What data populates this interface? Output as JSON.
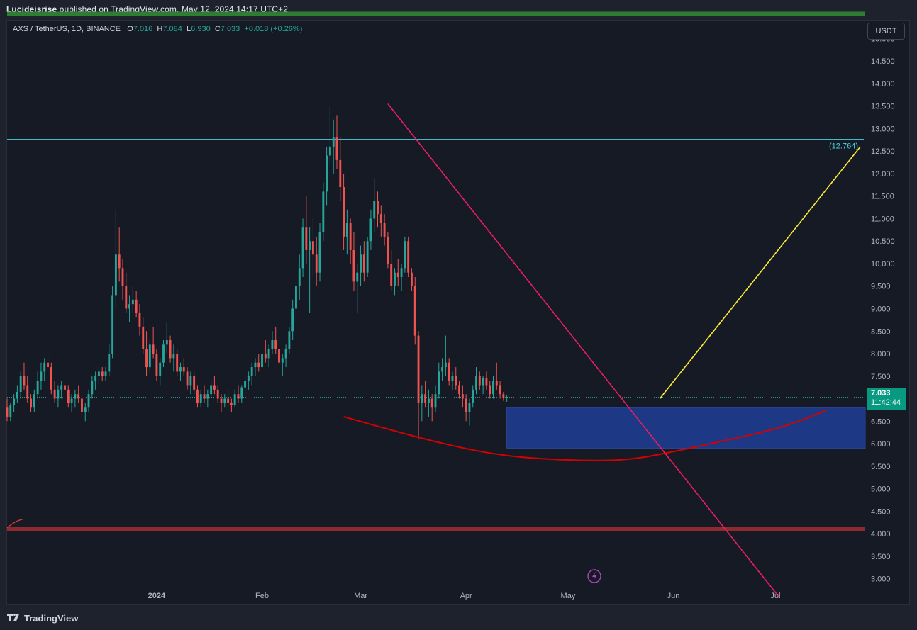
{
  "header": {
    "author": "Lucideisrise",
    "published": "published on TradingView.com, May 12, 2024 14:17 UTC+2"
  },
  "symbol": {
    "pair": "AXS / TetherUS, 1D, BINANCE",
    "o_label": "O",
    "o": "7.016",
    "h_label": "H",
    "h": "7.084",
    "l_label": "L",
    "l": "6.930",
    "c_label": "C",
    "c": "7.033",
    "change": "+0.018 (+0.26%)"
  },
  "currency_button": "USDT",
  "last_price": {
    "price": "7.033",
    "countdown": "11:42:44"
  },
  "footer": {
    "brand": "TradingView"
  },
  "colors": {
    "up": "#26a69a",
    "down": "#ef5350",
    "trendline": "#e91e63",
    "projection": "#ffeb3b",
    "zone": "#1e3a8a",
    "support": "#8e2a30",
    "resistance_top": "#2e7d32",
    "curve": "#d50000",
    "hline": "#4dd0e1"
  },
  "chart_data": {
    "type": "candlestick",
    "yaxis": {
      "ticks": [
        "15.000",
        "14.500",
        "14.000",
        "13.500",
        "13.000",
        "12.500",
        "12.000",
        "11.500",
        "11.000",
        "10.500",
        "10.000",
        "9.500",
        "9.000",
        "8.500",
        "8.000",
        "7.500",
        "7.000",
        "6.500",
        "6.000",
        "5.500",
        "5.000",
        "4.500",
        "4.000",
        "3.500",
        "3.000"
      ],
      "range": [
        2.6,
        15.4
      ]
    },
    "xaxis": {
      "ticks": [
        {
          "label": "2024",
          "date": "2024-01-01"
        },
        {
          "label": "Feb",
          "date": "2024-02-01"
        },
        {
          "label": "Mar",
          "date": "2024-03-01"
        },
        {
          "label": "Apr",
          "date": "2024-04-01"
        },
        {
          "label": "May",
          "date": "2024-05-01"
        },
        {
          "label": "Jun",
          "date": "2024-06-01"
        },
        {
          "label": "Jul",
          "date": "2024-07-01"
        }
      ],
      "range": [
        "2023-11-18",
        "2024-07-27"
      ]
    },
    "candles": {
      "start": "2023-11-18",
      "ohlc": [
        [
          6.8,
          7.0,
          6.5,
          6.6
        ],
        [
          6.6,
          6.9,
          6.5,
          6.85
        ],
        [
          6.85,
          7.1,
          6.7,
          7.0
        ],
        [
          7.0,
          7.3,
          6.9,
          7.15
        ],
        [
          7.15,
          7.6,
          7.0,
          7.5
        ],
        [
          7.5,
          7.8,
          7.2,
          7.3
        ],
        [
          7.3,
          7.5,
          6.9,
          7.0
        ],
        [
          7.0,
          7.1,
          6.7,
          6.8
        ],
        [
          6.8,
          7.2,
          6.7,
          7.1
        ],
        [
          7.1,
          7.6,
          7.0,
          7.4
        ],
        [
          7.4,
          7.8,
          7.2,
          7.6
        ],
        [
          7.6,
          7.9,
          7.4,
          7.8
        ],
        [
          7.8,
          8.0,
          7.5,
          7.7
        ],
        [
          7.7,
          7.8,
          7.1,
          7.2
        ],
        [
          7.2,
          7.4,
          6.9,
          7.0
        ],
        [
          7.0,
          7.3,
          6.8,
          7.2
        ],
        [
          7.2,
          7.4,
          7.0,
          7.3
        ],
        [
          7.3,
          7.5,
          7.1,
          7.2
        ],
        [
          7.2,
          7.3,
          6.8,
          6.9
        ],
        [
          6.9,
          7.1,
          6.7,
          7.0
        ],
        [
          7.0,
          7.2,
          6.8,
          7.1
        ],
        [
          7.1,
          7.3,
          6.9,
          7.0
        ],
        [
          7.0,
          7.1,
          6.6,
          6.7
        ],
        [
          6.7,
          6.9,
          6.5,
          6.8
        ],
        [
          6.8,
          7.2,
          6.7,
          7.1
        ],
        [
          7.1,
          7.5,
          7.0,
          7.4
        ],
        [
          7.4,
          7.6,
          7.2,
          7.5
        ],
        [
          7.5,
          7.7,
          7.3,
          7.6
        ],
        [
          7.6,
          7.7,
          7.4,
          7.5
        ],
        [
          7.5,
          7.7,
          7.4,
          7.6
        ],
        [
          7.6,
          8.2,
          7.5,
          8.0
        ],
        [
          8.0,
          9.5,
          7.9,
          9.3
        ],
        [
          9.3,
          11.2,
          9.0,
          10.2
        ],
        [
          10.2,
          10.8,
          9.6,
          9.9
        ],
        [
          9.9,
          10.1,
          9.2,
          9.5
        ],
        [
          9.5,
          9.8,
          8.9,
          9.0
        ],
        [
          9.0,
          9.3,
          8.7,
          9.1
        ],
        [
          9.1,
          9.5,
          8.9,
          9.2
        ],
        [
          9.2,
          9.4,
          8.8,
          8.9
        ],
        [
          8.9,
          9.1,
          8.4,
          8.6
        ],
        [
          8.6,
          8.8,
          8.0,
          8.1
        ],
        [
          8.1,
          8.5,
          7.5,
          7.7
        ],
        [
          7.7,
          8.3,
          7.6,
          8.2
        ],
        [
          8.2,
          8.6,
          7.9,
          8.0
        ],
        [
          8.0,
          8.1,
          7.4,
          7.5
        ],
        [
          7.5,
          7.9,
          7.3,
          7.8
        ],
        [
          7.8,
          8.3,
          7.7,
          8.2
        ],
        [
          8.2,
          8.7,
          8.0,
          8.3
        ],
        [
          8.3,
          8.4,
          7.8,
          7.9
        ],
        [
          7.9,
          8.2,
          7.6,
          8.0
        ],
        [
          8.0,
          8.1,
          7.5,
          7.6
        ],
        [
          7.6,
          7.8,
          7.4,
          7.7
        ],
        [
          7.7,
          7.9,
          7.5,
          7.6
        ],
        [
          7.6,
          7.7,
          7.2,
          7.3
        ],
        [
          7.3,
          7.6,
          7.1,
          7.5
        ],
        [
          7.5,
          7.6,
          7.1,
          7.2
        ],
        [
          7.2,
          7.3,
          6.8,
          6.9
        ],
        [
          6.9,
          7.2,
          6.8,
          7.1
        ],
        [
          7.1,
          7.3,
          6.9,
          7.0
        ],
        [
          7.0,
          7.2,
          6.8,
          7.1
        ],
        [
          7.1,
          7.4,
          7.0,
          7.3
        ],
        [
          7.3,
          7.5,
          7.1,
          7.2
        ],
        [
          7.2,
          7.3,
          6.9,
          7.0
        ],
        [
          7.0,
          7.1,
          6.7,
          6.9
        ],
        [
          6.9,
          7.1,
          6.8,
          7.0
        ],
        [
          7.0,
          7.2,
          6.8,
          6.9
        ],
        [
          6.9,
          7.0,
          6.7,
          6.85
        ],
        [
          6.85,
          7.2,
          6.8,
          7.1
        ],
        [
          7.1,
          7.3,
          6.9,
          7.0
        ],
        [
          7.0,
          7.3,
          6.9,
          7.25
        ],
        [
          7.25,
          7.5,
          7.1,
          7.4
        ],
        [
          7.4,
          7.6,
          7.2,
          7.5
        ],
        [
          7.5,
          7.8,
          7.3,
          7.7
        ],
        [
          7.7,
          7.9,
          7.5,
          7.8
        ],
        [
          7.8,
          8.0,
          7.6,
          7.7
        ],
        [
          7.7,
          8.1,
          7.6,
          8.0
        ],
        [
          8.0,
          8.3,
          7.8,
          7.9
        ],
        [
          7.9,
          8.2,
          7.7,
          8.1
        ],
        [
          8.1,
          8.5,
          8.0,
          8.3
        ],
        [
          8.3,
          8.6,
          8.0,
          8.1
        ],
        [
          8.1,
          8.2,
          7.7,
          7.8
        ],
        [
          7.8,
          8.0,
          7.5,
          7.9
        ],
        [
          7.9,
          8.2,
          7.7,
          8.1
        ],
        [
          8.1,
          8.6,
          8.0,
          8.5
        ],
        [
          8.5,
          9.2,
          8.3,
          9.0
        ],
        [
          9.0,
          9.6,
          8.8,
          9.5
        ],
        [
          9.5,
          10.2,
          9.2,
          9.9
        ],
        [
          9.9,
          11.0,
          9.7,
          10.8
        ],
        [
          10.8,
          11.5,
          10.0,
          10.3
        ],
        [
          10.3,
          10.8,
          8.9,
          10.5
        ],
        [
          10.5,
          11.0,
          9.7,
          10.2
        ],
        [
          10.2,
          10.6,
          9.5,
          9.8
        ],
        [
          9.8,
          10.9,
          9.6,
          10.7
        ],
        [
          10.7,
          11.8,
          10.5,
          11.6
        ],
        [
          11.6,
          12.6,
          11.3,
          12.4
        ],
        [
          12.4,
          13.5,
          12.2,
          12.6
        ],
        [
          12.6,
          13.2,
          12.0,
          12.8
        ],
        [
          12.8,
          13.3,
          12.1,
          12.3
        ],
        [
          12.3,
          12.8,
          11.4,
          11.7
        ],
        [
          11.7,
          12.0,
          10.3,
          10.6
        ],
        [
          10.6,
          11.2,
          10.2,
          10.9
        ],
        [
          10.9,
          11.0,
          10.0,
          10.3
        ],
        [
          10.3,
          10.7,
          9.4,
          9.6
        ],
        [
          9.6,
          10.0,
          8.9,
          9.8
        ],
        [
          9.8,
          10.4,
          9.5,
          10.2
        ],
        [
          10.2,
          10.5,
          9.6,
          9.8
        ],
        [
          9.8,
          10.6,
          9.7,
          10.5
        ],
        [
          10.5,
          11.2,
          10.3,
          11.0
        ],
        [
          11.0,
          11.9,
          10.7,
          11.4
        ],
        [
          11.4,
          11.6,
          10.8,
          11.1
        ],
        [
          11.1,
          11.3,
          10.6,
          10.9
        ],
        [
          10.9,
          11.1,
          10.4,
          10.6
        ],
        [
          10.6,
          10.7,
          9.9,
          10.0
        ],
        [
          10.0,
          10.3,
          9.4,
          9.5
        ],
        [
          9.5,
          9.9,
          9.3,
          9.8
        ],
        [
          9.8,
          10.1,
          9.5,
          9.7
        ],
        [
          9.7,
          10.0,
          9.4,
          9.9
        ],
        [
          9.9,
          10.6,
          9.8,
          10.5
        ],
        [
          10.5,
          10.6,
          9.7,
          9.8
        ],
        [
          9.8,
          9.9,
          9.4,
          9.5
        ],
        [
          9.5,
          9.7,
          8.2,
          8.4
        ],
        [
          8.4,
          8.5,
          6.1,
          6.9
        ],
        [
          6.9,
          7.3,
          6.5,
          7.1
        ],
        [
          7.1,
          7.4,
          6.8,
          6.9
        ],
        [
          6.9,
          7.2,
          6.6,
          7.0
        ],
        [
          7.0,
          7.1,
          6.5,
          6.8
        ],
        [
          6.8,
          7.3,
          6.7,
          7.1
        ],
        [
          7.1,
          7.8,
          7.0,
          7.6
        ],
        [
          7.6,
          7.9,
          7.4,
          7.7
        ],
        [
          7.7,
          8.4,
          7.5,
          7.8
        ],
        [
          7.8,
          7.9,
          7.3,
          7.4
        ],
        [
          7.4,
          7.6,
          7.2,
          7.5
        ],
        [
          7.5,
          7.7,
          7.2,
          7.3
        ],
        [
          7.3,
          7.4,
          7.0,
          7.1
        ],
        [
          7.1,
          7.3,
          6.8,
          7.0
        ],
        [
          7.0,
          7.1,
          6.5,
          6.7
        ],
        [
          6.7,
          7.0,
          6.4,
          6.9
        ],
        [
          6.9,
          7.3,
          6.8,
          7.2
        ],
        [
          7.2,
          7.7,
          7.1,
          7.5
        ],
        [
          7.5,
          7.6,
          7.2,
          7.3
        ],
        [
          7.3,
          7.5,
          7.1,
          7.45
        ],
        [
          7.45,
          7.6,
          7.2,
          7.3
        ],
        [
          7.3,
          7.4,
          7.0,
          7.1
        ],
        [
          7.1,
          7.5,
          7.0,
          7.4
        ],
        [
          7.4,
          7.8,
          7.2,
          7.3
        ],
        [
          7.3,
          7.4,
          7.0,
          7.1
        ],
        [
          7.1,
          7.15,
          6.95,
          7.016
        ],
        [
          7.016,
          7.084,
          6.93,
          7.033
        ]
      ]
    },
    "annotations": {
      "horizontal_line": {
        "value": 12.764,
        "label": "(12.764)"
      },
      "resistance_band": {
        "value": 15.55
      },
      "support_band": {
        "value": 4.1
      },
      "demand_zone": {
        "from": "2024-04-13",
        "to": "2024-07-27",
        "low": 5.9,
        "high": 6.8
      },
      "descending_trendline": {
        "from": [
          "2024-03-09",
          13.55
        ],
        "to": [
          "2024-07-02",
          2.6
        ]
      },
      "projection_line": {
        "from": [
          "2024-05-28",
          7.0
        ],
        "to": [
          "2024-07-26",
          12.6
        ]
      },
      "rounding_curve": [
        [
          "2024-02-25",
          6.6
        ],
        [
          "2024-03-10",
          6.3
        ],
        [
          "2024-03-25",
          6.0
        ],
        [
          "2024-04-10",
          5.75
        ],
        [
          "2024-04-25",
          5.65
        ],
        [
          "2024-05-10",
          5.62
        ],
        [
          "2024-05-20",
          5.65
        ],
        [
          "2024-06-01",
          5.82
        ],
        [
          "2024-06-15",
          6.05
        ],
        [
          "2024-06-30",
          6.3
        ],
        [
          "2024-07-10",
          6.55
        ],
        [
          "2024-07-16",
          6.75
        ]
      ]
    }
  }
}
